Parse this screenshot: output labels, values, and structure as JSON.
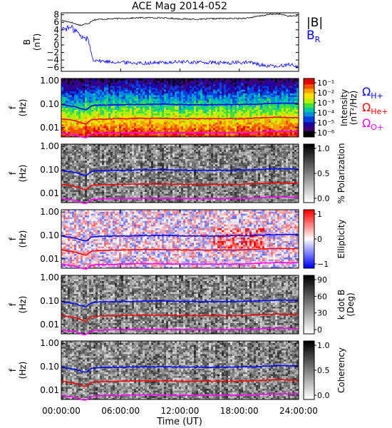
{
  "title": "ACE Mag 2014-052",
  "x_axis": {
    "label": "Time (UT)",
    "range_hours": [
      0,
      24
    ],
    "tick_hours": [
      0,
      6,
      12,
      18,
      24
    ],
    "tick_labels": [
      "00:00:00",
      "06:00:00",
      "12:00:00",
      "18:00:00",
      "24:00:00"
    ]
  },
  "colors": {
    "B_total": "#000000",
    "B_R": "#0000ff",
    "H_plus": "#0000ff",
    "He_plus": "#ff0000",
    "O_plus": "#ff00ff"
  },
  "chart_data": [
    {
      "type": "line",
      "name": "magnetic-field",
      "ylabel": "B (nT)",
      "ylim": [
        -7,
        8.5
      ],
      "yticks": [
        8,
        6,
        4,
        2,
        0,
        -2,
        -4,
        -6
      ],
      "ytick_labels": [
        "8",
        "6",
        "4",
        "2",
        "0",
        "−2",
        "−4",
        "−6"
      ],
      "legend": [
        "|B|",
        "B_R"
      ],
      "legend_placement": "right",
      "x_hours": [
        0,
        1,
        1.5,
        2,
        2.5,
        2.8,
        3.0,
        3.2,
        4,
        6,
        8,
        10,
        12,
        14,
        16,
        18,
        19,
        20,
        21,
        22,
        23,
        24
      ],
      "series": [
        {
          "name": "|B|",
          "values": [
            6.5,
            6.0,
            5.5,
            5.2,
            5.6,
            5.8,
            6.2,
            6.6,
            6.8,
            7.0,
            7.2,
            7.2,
            6.9,
            6.8,
            7.0,
            7.0,
            7.2,
            7.6,
            8.1,
            8.2,
            7.6,
            7.8
          ]
        },
        {
          "name": "B_R",
          "values": [
            4.3,
            4.5,
            3.8,
            2.0,
            1.8,
            1.0,
            -2.0,
            -3.8,
            -4.3,
            -4.6,
            -4.8,
            -4.7,
            -4.5,
            -4.6,
            -4.8,
            -4.7,
            -4.6,
            -5.2,
            -5.6,
            -5.8,
            -5.0,
            -6.0
          ]
        }
      ]
    },
    {
      "type": "heatmap",
      "name": "wave-power",
      "ylabel": "f (Hz)",
      "colorbar_label": "Intensity (nT²/Hz)",
      "colorbar_scale": "log",
      "colorbar_ticks": [
        "10⁻¹",
        "10⁻²",
        "10⁻³",
        "10⁻⁴",
        "10⁻⁵",
        "10⁻⁶"
      ],
      "gyro_legend": [
        "Ω_H+",
        "Ω_He+",
        "Ω_O+"
      ]
    },
    {
      "type": "heatmap",
      "name": "polarization",
      "ylabel": "f (Hz)",
      "colorbar_label": "% Polarization",
      "colorbar_ticks": [
        "1.0",
        "0.5",
        "0.0"
      ]
    },
    {
      "type": "heatmap",
      "name": "ellipticity",
      "ylabel": "f (Hz)",
      "colorbar_label": "Ellipticity",
      "colorbar_ticks": [
        "1",
        "0",
        "−1"
      ]
    },
    {
      "type": "heatmap",
      "name": "wave-normal-angle",
      "ylabel": "f (Hz)",
      "colorbar_label": "k dot B (Deg)",
      "colorbar_ticks": [
        "90",
        "60",
        "30",
        "0"
      ]
    },
    {
      "type": "heatmap",
      "name": "coherence",
      "ylabel": "f (Hz)",
      "colorbar_label": "Coherency",
      "colorbar_ticks": [
        "1.0",
        "0.5",
        "0.0"
      ]
    },
    {
      "type": "line",
      "name": "gyrofrequencies",
      "ylabel": "f (Hz)",
      "yscale": "log",
      "ylim": [
        0.004,
        1.25
      ],
      "yticks": [
        1.0,
        0.1,
        0.01
      ],
      "ytick_labels": [
        "1.00",
        "0.10",
        "0.01"
      ],
      "x_hours": [
        0,
        1,
        1.5,
        2,
        2.5,
        2.8,
        3.0,
        3.2,
        4,
        6,
        8,
        10,
        12,
        14,
        16,
        18,
        19,
        20,
        21,
        22,
        23,
        24
      ],
      "series": [
        {
          "name": "Ω_H+",
          "values": [
            0.095,
            0.083,
            0.076,
            0.063,
            0.058,
            0.07,
            0.083,
            0.088,
            0.092,
            0.095,
            0.098,
            0.1,
            0.097,
            0.095,
            0.095,
            0.097,
            0.098,
            0.102,
            0.107,
            0.11,
            0.11,
            0.109
          ]
        },
        {
          "name": "Ω_He+",
          "values": [
            0.024,
            0.021,
            0.019,
            0.016,
            0.014,
            0.018,
            0.021,
            0.022,
            0.023,
            0.024,
            0.025,
            0.025,
            0.024,
            0.024,
            0.024,
            0.024,
            0.025,
            0.026,
            0.027,
            0.028,
            0.027,
            0.027
          ]
        },
        {
          "name": "Ω_O+",
          "values": [
            0.006,
            0.0052,
            0.0048,
            0.004,
            0.0036,
            0.0045,
            0.0052,
            0.0055,
            0.0058,
            0.006,
            0.0062,
            0.0062,
            0.006,
            0.006,
            0.006,
            0.006,
            0.0062,
            0.0065,
            0.0068,
            0.007,
            0.0068,
            0.0068
          ]
        }
      ]
    }
  ]
}
